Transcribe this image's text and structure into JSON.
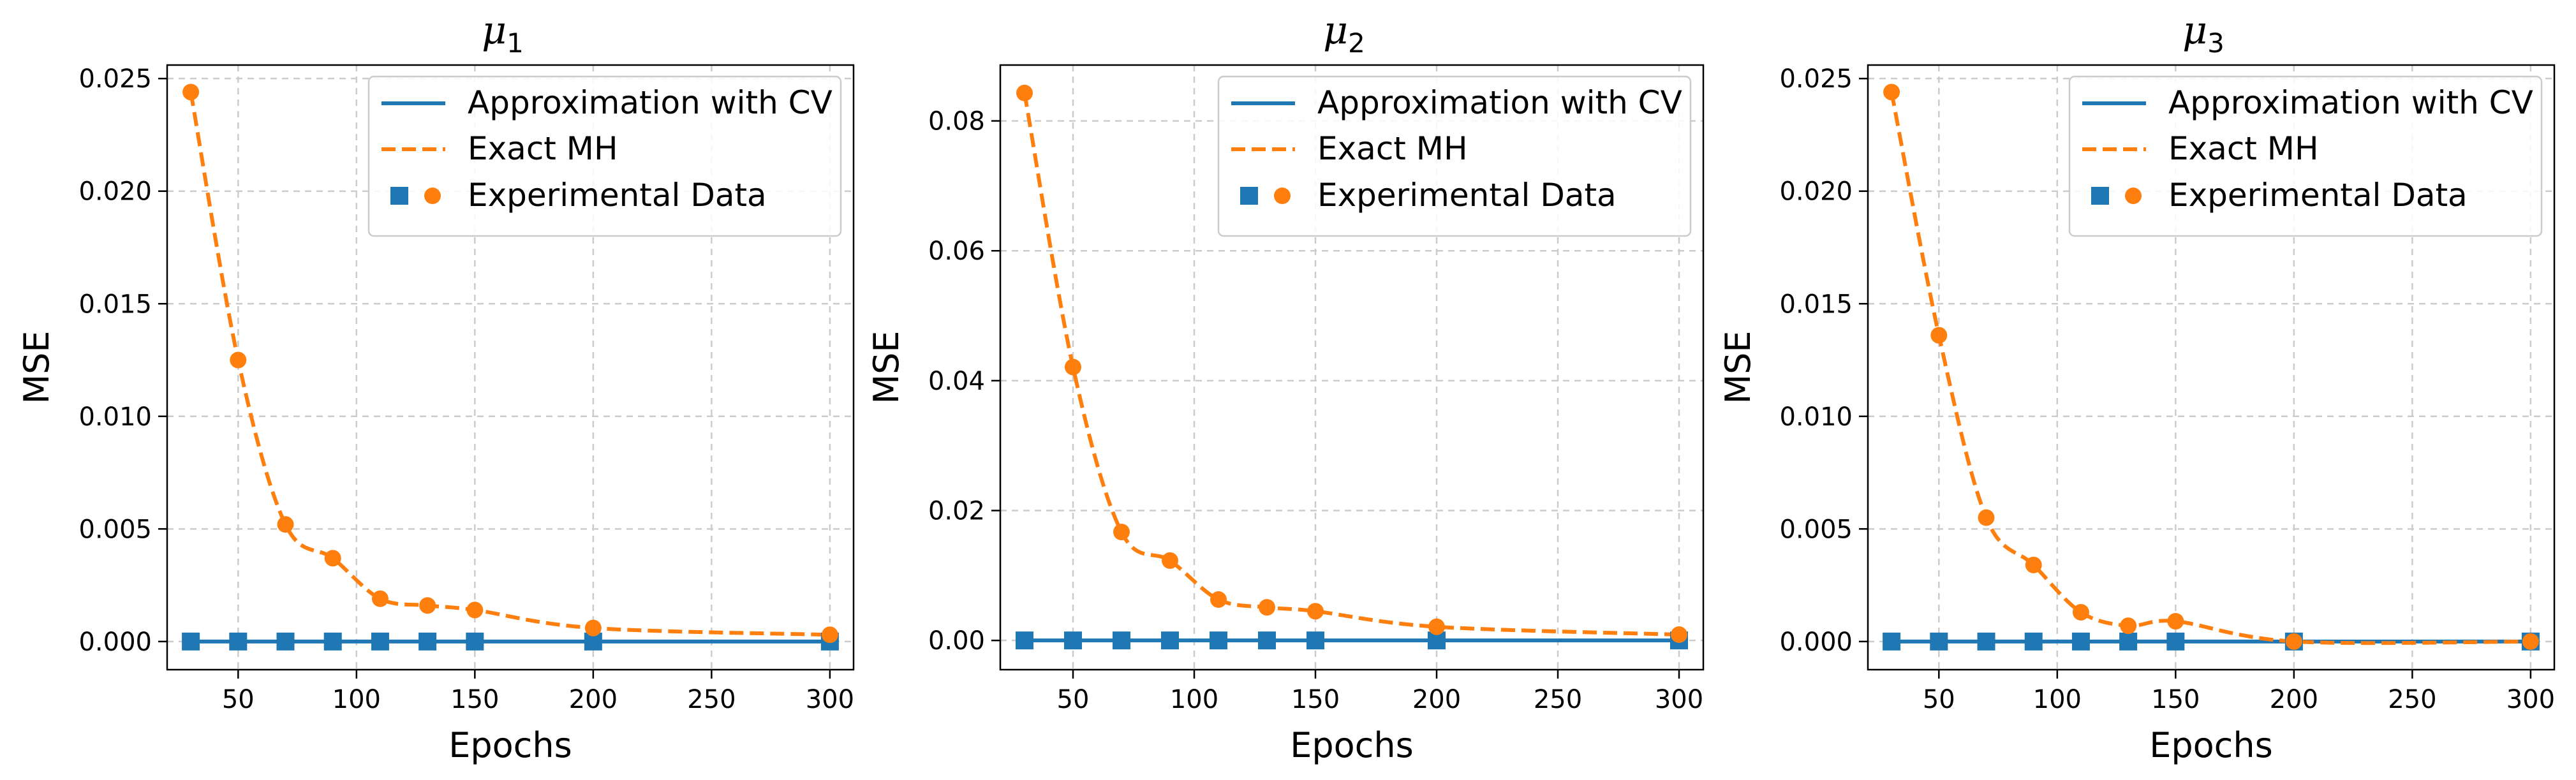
{
  "colors": {
    "cv": "#1f77b4",
    "mh": "#ff7f0e",
    "grid": "#cccccc"
  },
  "legend": {
    "cv": "Approximation with CV",
    "mh": "Exact MH",
    "exp": "Experimental Data"
  },
  "chart_data": [
    {
      "type": "line",
      "title": "μ",
      "subscript": "1",
      "xlabel": "Epochs",
      "ylabel": "MSE",
      "xlim": [
        20,
        310
      ],
      "ylim": [
        -0.00125,
        0.0256
      ],
      "xticks": [
        50,
        100,
        150,
        200,
        250,
        300
      ],
      "yticks": [
        0.0,
        0.005,
        0.01,
        0.015,
        0.02,
        0.025
      ],
      "ytick_labels": [
        "0.000",
        "0.005",
        "0.010",
        "0.015",
        "0.020",
        "0.025"
      ],
      "legend_position": "top-right",
      "grid": true,
      "x": [
        30,
        50,
        70,
        90,
        110,
        130,
        150,
        200,
        300
      ],
      "series": [
        {
          "name": "Approximation with CV",
          "style": "solid",
          "marker": "square",
          "values": [
            0,
            0,
            0,
            0,
            0,
            0,
            0,
            0,
            0
          ]
        },
        {
          "name": "Exact MH",
          "style": "dashed",
          "marker": "circle",
          "values": [
            0.0244,
            0.0125,
            0.0052,
            0.0037,
            0.0019,
            0.0016,
            0.0014,
            0.0006,
            0.0003
          ]
        }
      ]
    },
    {
      "type": "line",
      "title": "μ",
      "subscript": "2",
      "xlabel": "Epochs",
      "ylabel": "MSE",
      "xlim": [
        20,
        310
      ],
      "ylim": [
        -0.0045,
        0.0886
      ],
      "xticks": [
        50,
        100,
        150,
        200,
        250,
        300
      ],
      "yticks": [
        0.0,
        0.02,
        0.04,
        0.06,
        0.08
      ],
      "ytick_labels": [
        "0.00",
        "0.02",
        "0.04",
        "0.06",
        "0.08"
      ],
      "legend_position": "top-right",
      "grid": true,
      "x": [
        30,
        50,
        70,
        90,
        110,
        130,
        150,
        200,
        300
      ],
      "series": [
        {
          "name": "Approximation with CV",
          "style": "solid",
          "marker": "square",
          "values": [
            0,
            0,
            0,
            0,
            0,
            0,
            0,
            0,
            0
          ]
        },
        {
          "name": "Exact MH",
          "style": "dashed",
          "marker": "circle",
          "values": [
            0.0843,
            0.0421,
            0.0167,
            0.0123,
            0.0063,
            0.0051,
            0.0045,
            0.0021,
            0.0009
          ]
        }
      ]
    },
    {
      "type": "line",
      "title": "μ",
      "subscript": "3",
      "xlabel": "Epochs",
      "ylabel": "MSE",
      "xlim": [
        20,
        310
      ],
      "ylim": [
        -0.00125,
        0.0256
      ],
      "xticks": [
        50,
        100,
        150,
        200,
        250,
        300
      ],
      "yticks": [
        0.0,
        0.005,
        0.01,
        0.015,
        0.02,
        0.025
      ],
      "ytick_labels": [
        "0.000",
        "0.005",
        "0.010",
        "0.015",
        "0.020",
        "0.025"
      ],
      "legend_position": "top-right",
      "grid": true,
      "x": [
        30,
        50,
        70,
        90,
        110,
        130,
        150,
        200,
        300
      ],
      "series": [
        {
          "name": "Approximation with CV",
          "style": "solid",
          "marker": "square",
          "values": [
            0,
            0,
            0,
            0,
            0,
            0,
            0,
            0,
            0
          ]
        },
        {
          "name": "Exact MH",
          "style": "dashed",
          "marker": "circle",
          "values": [
            0.0244,
            0.0136,
            0.0055,
            0.0034,
            0.0013,
            0.0007,
            0.0009,
            0.0,
            0.0
          ]
        }
      ]
    }
  ]
}
